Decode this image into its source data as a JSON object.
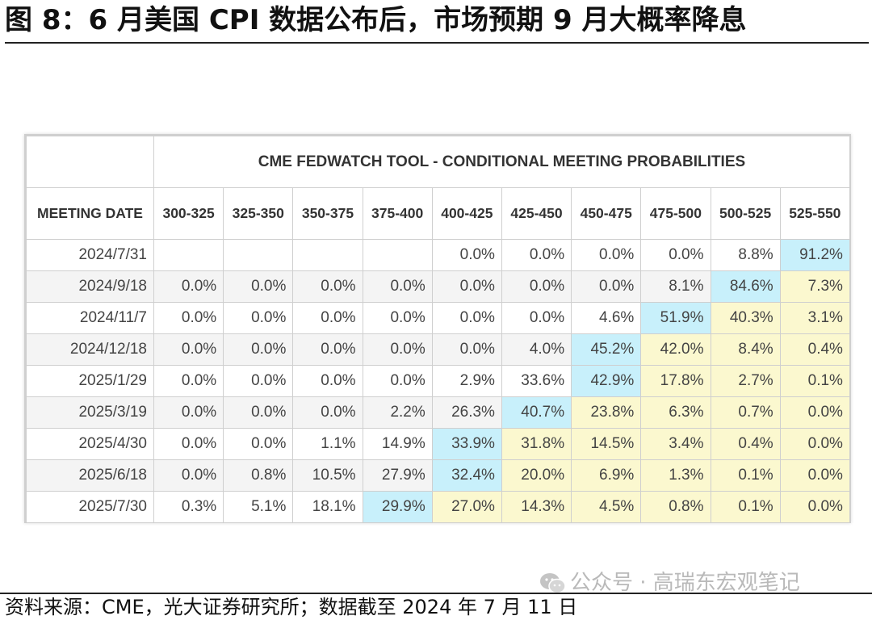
{
  "title": "图 8：6 月美国 CPI 数据公布后，市场预期 9 月大概率降息",
  "source": "资料来源：CME，光大证券研究所；数据截至 2024 年 7 月 11 日",
  "watermark": "公众号 · 高瑞东宏观笔记",
  "colors": {
    "max_highlight": "#c8f0fb",
    "above_highlight": "#fbf8cf"
  },
  "chart_data": {
    "type": "table",
    "title": "CME FEDWATCH TOOL - CONDITIONAL MEETING PROBABILITIES",
    "row_header_label": "MEETING DATE",
    "columns": [
      "300-325",
      "325-350",
      "350-375",
      "375-400",
      "400-425",
      "425-450",
      "450-475",
      "475-500",
      "500-525",
      "525-550"
    ],
    "rows": [
      {
        "date": "2024/7/31",
        "values": [
          "",
          "",
          "",
          "",
          "0.0%",
          "0.0%",
          "0.0%",
          "0.0%",
          "8.8%",
          "91.2%"
        ],
        "max_col": 9
      },
      {
        "date": "2024/9/18",
        "values": [
          "0.0%",
          "0.0%",
          "0.0%",
          "0.0%",
          "0.0%",
          "0.0%",
          "0.0%",
          "8.1%",
          "84.6%",
          "7.3%"
        ],
        "max_col": 8
      },
      {
        "date": "2024/11/7",
        "values": [
          "0.0%",
          "0.0%",
          "0.0%",
          "0.0%",
          "0.0%",
          "0.0%",
          "4.6%",
          "51.9%",
          "40.3%",
          "3.1%"
        ],
        "max_col": 7
      },
      {
        "date": "2024/12/18",
        "values": [
          "0.0%",
          "0.0%",
          "0.0%",
          "0.0%",
          "0.0%",
          "4.0%",
          "45.2%",
          "42.0%",
          "8.4%",
          "0.4%"
        ],
        "max_col": 6
      },
      {
        "date": "2025/1/29",
        "values": [
          "0.0%",
          "0.0%",
          "0.0%",
          "0.0%",
          "2.9%",
          "33.6%",
          "42.9%",
          "17.8%",
          "2.7%",
          "0.1%"
        ],
        "max_col": 6
      },
      {
        "date": "2025/3/19",
        "values": [
          "0.0%",
          "0.0%",
          "0.0%",
          "2.2%",
          "26.3%",
          "40.7%",
          "23.8%",
          "6.3%",
          "0.7%",
          "0.0%"
        ],
        "max_col": 5
      },
      {
        "date": "2025/4/30",
        "values": [
          "0.0%",
          "0.0%",
          "1.1%",
          "14.9%",
          "33.9%",
          "31.8%",
          "14.5%",
          "3.4%",
          "0.4%",
          "0.0%"
        ],
        "max_col": 4
      },
      {
        "date": "2025/6/18",
        "values": [
          "0.0%",
          "0.8%",
          "10.5%",
          "27.9%",
          "32.4%",
          "20.0%",
          "6.9%",
          "1.3%",
          "0.1%",
          "0.0%"
        ],
        "max_col": 4
      },
      {
        "date": "2025/7/30",
        "values": [
          "0.3%",
          "5.1%",
          "18.1%",
          "29.9%",
          "27.0%",
          "14.3%",
          "4.5%",
          "0.8%",
          "0.1%",
          "0.0%"
        ],
        "max_col": 3
      }
    ]
  }
}
